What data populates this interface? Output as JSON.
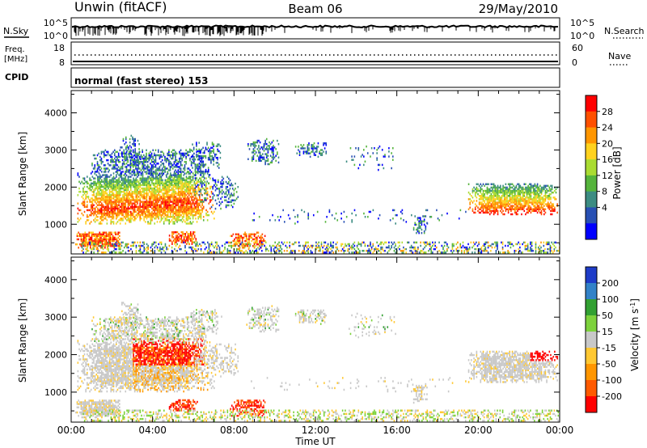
{
  "header": {
    "station": "Unwin (fitACF)",
    "beam": "Beam 06",
    "date": "29/May/2010"
  },
  "strips": {
    "nsky": {
      "label": "N.Sky",
      "ticks": [
        "10^5",
        "10^0"
      ]
    },
    "nsearch": {
      "label": "N.Search",
      "ticks": [
        "10^5",
        "10^0"
      ]
    },
    "freq": {
      "label_line1": "Freq.",
      "label_line2": "[MHz]",
      "ticks": [
        "18",
        "8"
      ]
    },
    "nave": {
      "label": "Nave",
      "ticks": [
        "60",
        "0"
      ]
    },
    "cpid": {
      "label": "CPID",
      "text": "normal (fast stereo) 153"
    }
  },
  "chart_data": [
    {
      "type": "heatmap",
      "name": "power",
      "ylabel": "Slant Range [km]",
      "yticks": [
        1000,
        2000,
        3000,
        4000
      ],
      "ylim": [
        200,
        4600
      ],
      "xlim": [
        0,
        24
      ],
      "colorbar": {
        "label": "Power [dB]",
        "ticks": [
          "28",
          "24",
          "20",
          "16",
          "12",
          "8",
          "4"
        ],
        "colors": [
          "#ff0000",
          "#ff5000",
          "#ff9600",
          "#ffd21e",
          "#aadc32",
          "#55b43c",
          "#3c8c82",
          "#2850b4",
          "#0000ff"
        ]
      }
    },
    {
      "type": "heatmap",
      "name": "velocity",
      "ylabel": "Slant Range [km]",
      "yticks": [
        1000,
        2000,
        3000,
        4000
      ],
      "ylim": [
        200,
        4600
      ],
      "xlim": [
        0,
        24
      ],
      "xticks": [
        "00:00",
        "04:00",
        "08:00",
        "12:00",
        "16:00",
        "20:00",
        "00:00"
      ],
      "xlabel": "Time UT",
      "colorbar": {
        "label": "Velocity [m s",
        "label_sup": "-1",
        "label_end": "]",
        "ticks": [
          "200",
          "100",
          "50",
          "15",
          "-15",
          "-50",
          "-100",
          "-200"
        ],
        "colors": [
          "#1e3cc8",
          "#3282c8",
          "#32a032",
          "#7dd23c",
          "#c8c8c8",
          "#ffc832",
          "#ff9600",
          "#ff5a00",
          "#ff0000"
        ]
      }
    }
  ]
}
